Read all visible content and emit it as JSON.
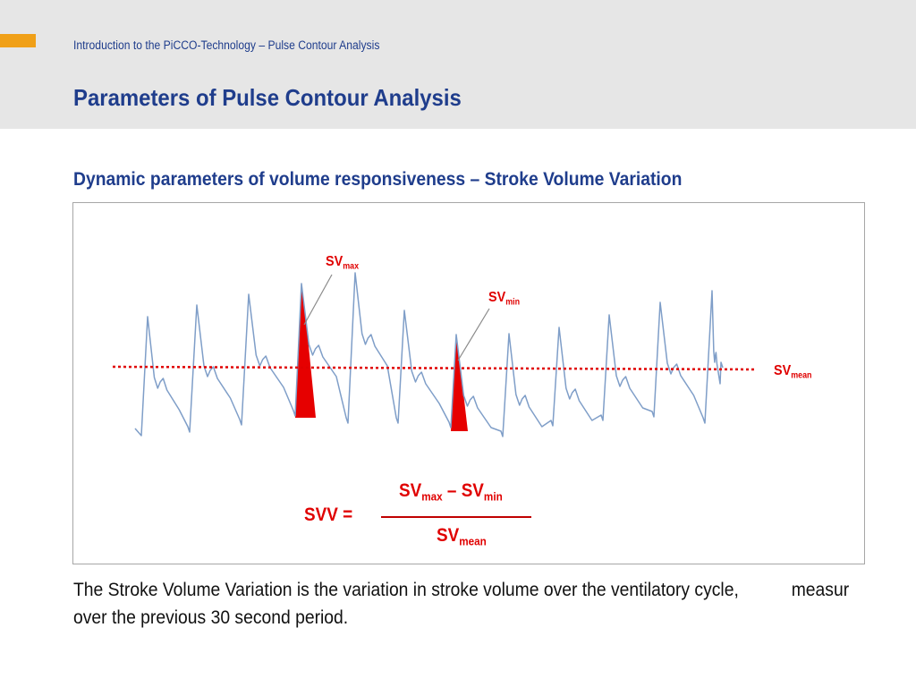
{
  "header": {
    "breadcrumb": "Introduction to the PiCCO-Technology – Pulse Contour Analysis",
    "title": "Parameters of Pulse Contour Analysis"
  },
  "subtitle": "Dynamic parameters of volume responsiveness – Stroke Volume Variation",
  "figure": {
    "labels": {
      "sv_max": {
        "main": "SV",
        "sub": "max"
      },
      "sv_min": {
        "main": "SV",
        "sub": "min"
      },
      "sv_mean": {
        "main": "SV",
        "sub": "mean"
      }
    },
    "formula": {
      "lhs": "SVV =",
      "num_a": "SV",
      "num_a_sub": "max",
      "minus": " – ",
      "num_b": "SV",
      "num_b_sub": "min",
      "den": "SV",
      "den_sub": "mean"
    }
  },
  "caption": {
    "line1": "The Stroke Volume Variation is the variation in stroke volume over the ventilatory cycle,",
    "line1_cont": "measur",
    "line2": "over the previous 30 second period."
  },
  "colors": {
    "title_blue": "#1f3d8c",
    "accent_orange": "#f0a018",
    "waveform_blue": "#7f9ec8",
    "highlight_red": "#e00000"
  }
}
